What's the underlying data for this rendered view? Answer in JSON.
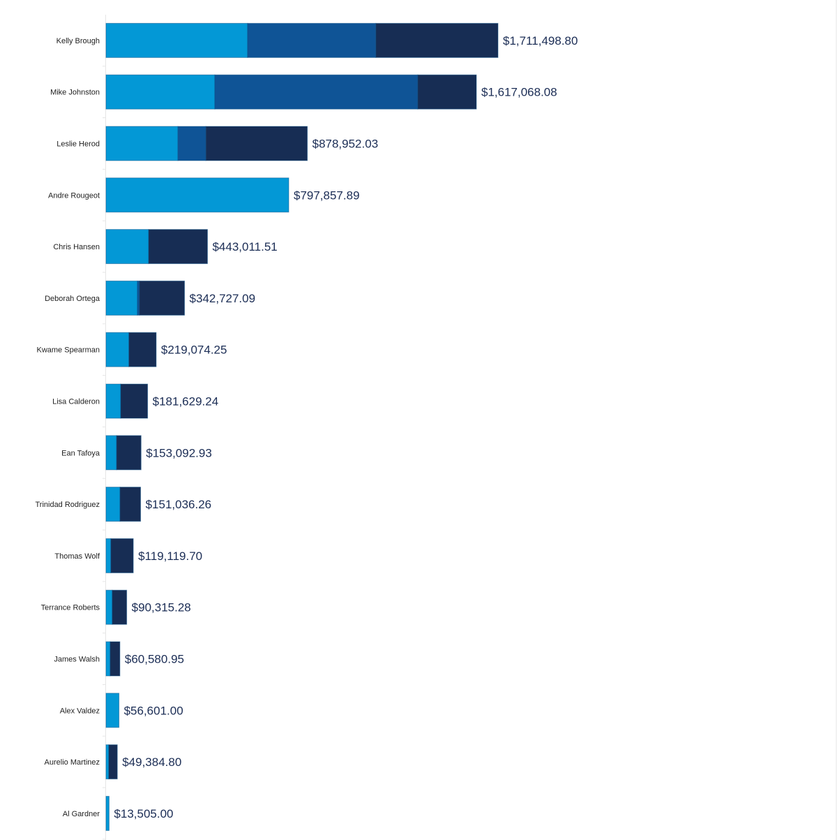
{
  "chart_data": {
    "type": "bar",
    "orientation": "horizontal",
    "stacked": true,
    "title": "",
    "xlabel": "",
    "ylabel": "",
    "xlim": [
      0,
      1711498.8
    ],
    "grid": false,
    "legend": "none",
    "series_colors": [
      "#0398d6",
      "#0f5496",
      "#172d54"
    ],
    "categories": [
      "Kelly Brough",
      "Mike Johnston",
      "Leslie Herod",
      "Andre Rougeot",
      "Chris Hansen",
      "Deborah Ortega",
      "Kwame Spearman",
      "Lisa Calderon",
      "Ean Tafoya",
      "Trinidad Rodriguez",
      "Thomas Wolf",
      "Terrance Roberts",
      "James Walsh",
      "Alex Valdez",
      "Aurelio Martinez",
      "Al Gardner"
    ],
    "series": [
      {
        "values": [
          618000,
          475000,
          314000,
          797857.89,
          186000,
          137000,
          100000,
          64000,
          46000,
          61000,
          21000,
          27000,
          18000,
          56601.0,
          12000,
          13505.0
        ]
      },
      {
        "values": [
          560000,
          886000,
          122000,
          0,
          0,
          9000,
          0,
          0,
          0,
          0,
          0,
          0,
          0,
          0,
          0,
          0
        ]
      },
      {
        "values": [
          533498.8,
          256068.08,
          442952.03,
          0,
          257011.51,
          196727.09,
          119074.25,
          117629.24,
          107092.93,
          90036.26,
          98119.7,
          63315.28,
          42580.95,
          0,
          37384.8,
          0
        ]
      }
    ],
    "totals": [
      1711498.8,
      1617068.08,
      878952.03,
      797857.89,
      443011.51,
      342727.09,
      219074.25,
      181629.24,
      153092.93,
      151036.26,
      119119.7,
      90315.28,
      60580.95,
      56601.0,
      49384.8,
      13505.0
    ],
    "total_labels": [
      "$1,711,498.80",
      "$1,617,068.08",
      "$878,952.03",
      "$797,857.89",
      "$443,011.51",
      "$342,727.09",
      "$219,074.25",
      "$181,629.24",
      "$153,092.93",
      "$151,036.26",
      "$119,119.70",
      "$90,315.28",
      "$60,580.95",
      "$56,601.00",
      "$49,384.80",
      "$13,505.00"
    ]
  }
}
